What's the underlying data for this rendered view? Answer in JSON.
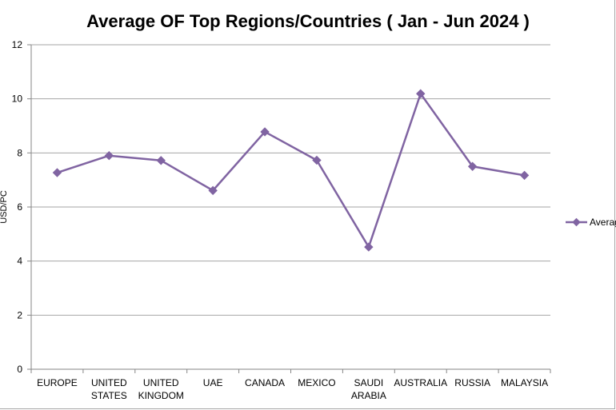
{
  "chart_data": {
    "type": "line",
    "title": "Average OF Top Regions/Countries ( Jan - Jun 2024 )",
    "xlabel": "",
    "ylabel": "USD/PC",
    "categories": [
      [
        "EUROPE"
      ],
      [
        "UNITED",
        "STATES"
      ],
      [
        "UNITED",
        "KINGDOM"
      ],
      [
        "UAE"
      ],
      [
        "CANADA"
      ],
      [
        "MEXICO"
      ],
      [
        "SAUDI",
        "ARABIA"
      ],
      [
        "AUSTRALIA"
      ],
      [
        "RUSSIA"
      ],
      [
        "MALAYSIA"
      ]
    ],
    "series": [
      {
        "name": "Average",
        "values": [
          7.27,
          7.9,
          7.72,
          6.61,
          8.78,
          7.73,
          4.52,
          10.19,
          7.5,
          7.17
        ],
        "color": "#8064a2",
        "marker": "diamond"
      }
    ],
    "ylim": [
      0,
      12
    ],
    "yticks": [
      0,
      2,
      4,
      6,
      8,
      10,
      12
    ],
    "grid": "horizontal",
    "legend": "right",
    "colors": {
      "grid": "#a6a6a6",
      "axis": "#868686",
      "text": "#000000",
      "background": "#ffffff"
    }
  }
}
